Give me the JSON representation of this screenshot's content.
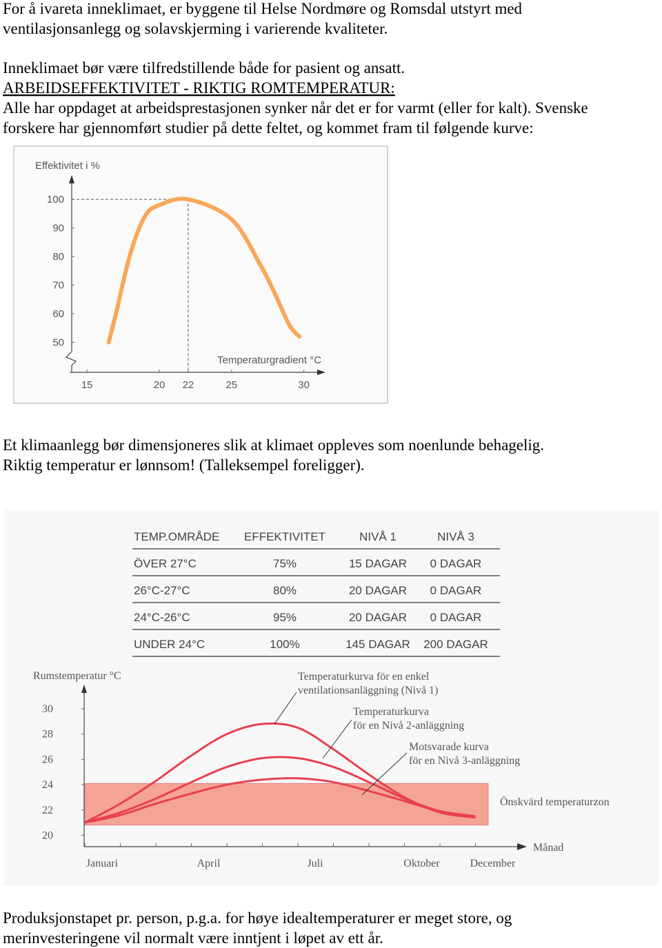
{
  "text_top": [
    "For å ivareta inneklimaet, er byggene til Helse Nordmøre og Romsdal utstyrt med",
    "ventilasjonsanlegg og solavskjerming i varierende kvaliteter."
  ],
  "text_intro": "Inneklimaet bør være tilfredstillende både for pasient og ansatt.",
  "heading": "ARBEIDSEFFEKTIVITET - RIKTIG ROMTEMPERATUR:",
  "text_study": [
    "Alle har oppdaget at arbeidsprestasjonen synker når det er for varmt (eller for kalt). Svenske",
    "forskere har gjennomført studier på dette feltet, og kommet fram til følgende kurve:"
  ],
  "text_middle": [
    "Et klimaanlegg bør dimensjoneres slik at klimaet oppleves som noenlunde behagelig.",
    "Riktig temperatur er lønnsom! (Talleksempel foreligger)."
  ],
  "text_bottom": [
    "Produksjonstapet pr. person, p.g.a. for høye idealtemperaturer er meget store, og",
    "merinvesteringene vil normalt være inntjent i løpet av ett år."
  ],
  "table": {
    "headers": [
      "TEMP.OMRÅDE",
      "EFFEKTIVITET",
      "NIVÅ 1",
      "NIVÅ 3"
    ],
    "rows": [
      [
        "ÖVER 27°C",
        "75%",
        "15 DAGAR",
        "0 DAGAR"
      ],
      [
        "26°C-27°C",
        "80%",
        "20 DAGAR",
        "0 DAGAR"
      ],
      [
        "24°C-26°C",
        "95%",
        "20 DAGAR",
        "0 DAGAR"
      ],
      [
        "UNDER 24°C",
        "100%",
        "145 DAGAR",
        "200 DAGAR"
      ]
    ]
  },
  "chart_data": [
    {
      "type": "line",
      "y_label": "Effektivitet i %",
      "x_label": "Temperaturgradient °C",
      "x": [
        16.5,
        17,
        18,
        19,
        20,
        22,
        25,
        27,
        28,
        29,
        29.7
      ],
      "values": [
        50,
        60,
        81,
        94,
        98,
        100,
        93,
        77,
        67,
        56,
        52
      ],
      "color": "#f7a85a",
      "xlim": [
        13.8,
        31.4
      ],
      "ylim": [
        40,
        108
      ],
      "xticks": [
        15,
        20,
        22,
        25,
        30
      ],
      "yticks": [
        50,
        60,
        70,
        80,
        90,
        100
      ]
    },
    {
      "type": "line",
      "y_label": "Rumstemperatur °C",
      "x_label": "Månad",
      "categories": [
        "Januari",
        null,
        null,
        "April",
        null,
        null,
        "Juli",
        null,
        null,
        "Oktober",
        null,
        "December"
      ],
      "series": [
        {
          "color": "#e8404f",
          "values": [
            21,
            22.5,
            24.3,
            26.3,
            28,
            28.8,
            28.5,
            26.8,
            24.8,
            23,
            21.8,
            21.4
          ]
        },
        {
          "color": "#e8404f",
          "values": [
            21,
            21.8,
            22.9,
            24.2,
            25.4,
            26.1,
            26.1,
            25.4,
            24.2,
            22.9,
            21.9,
            21.4
          ]
        },
        {
          "color": "#e8404f",
          "values": [
            21,
            21.6,
            22.5,
            23.3,
            24,
            24.4,
            24.5,
            24.2,
            23.5,
            22.7,
            21.9,
            21.5
          ]
        }
      ],
      "band": {
        "range": [
          20.8,
          24.1
        ],
        "label": "Önskvärd temperaturzon",
        "color": "#f4a394"
      },
      "annotations": [
        [
          "Temperaturkurva för en enkel",
          "ventilationsanläggning (Nivå 1)"
        ],
        [
          "Temperaturkurva",
          "för en Nivå 2-anläggning"
        ],
        [
          "Motsvarade kurva",
          "för en Nivå 3-anläggning"
        ]
      ],
      "ylim": [
        19.1,
        31.8
      ],
      "yticks": [
        20,
        22,
        24,
        26,
        28,
        30
      ]
    }
  ]
}
